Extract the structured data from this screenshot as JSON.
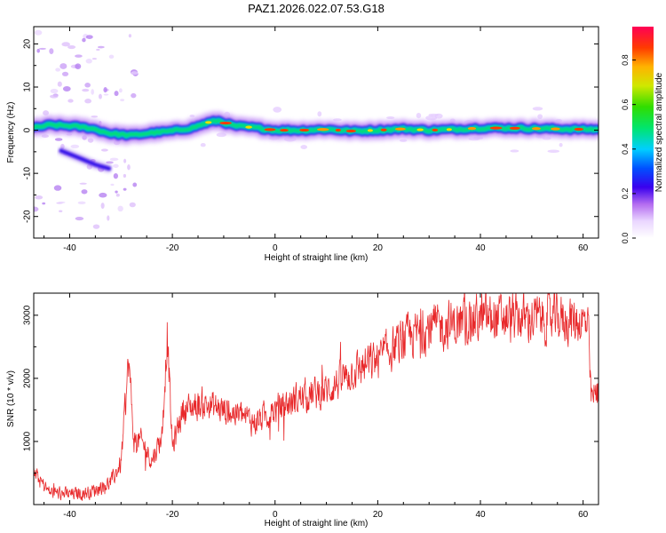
{
  "chart_data": {
    "title": "PAZ1.2026.022.07.53.G18",
    "spectrogram": {
      "type": "heatmap",
      "xlabel": "Height of straight line (km)",
      "ylabel": "Frequency (Hz)",
      "xlim": [
        -47,
        63
      ],
      "ylim": [
        -25,
        24
      ],
      "xticks": [
        -40,
        -20,
        0,
        20,
        40,
        60
      ],
      "yticks": [
        -20,
        -10,
        0,
        10,
        20
      ],
      "ridge": {
        "x": [
          -47,
          -44,
          -40,
          -36,
          -32,
          -28,
          -24,
          -20,
          -16,
          -13,
          -11,
          -8,
          -4,
          0,
          5,
          10,
          15,
          20,
          25,
          30,
          35,
          40,
          45,
          50,
          55,
          60,
          63
        ],
        "y": [
          0.5,
          1.2,
          1.0,
          0.5,
          -0.8,
          -1.2,
          -0.6,
          -0.2,
          0.6,
          1.8,
          2.2,
          1.0,
          0.6,
          0.0,
          0.0,
          0.2,
          -0.2,
          0.0,
          0.3,
          0.0,
          0.2,
          0.5,
          0.5,
          0.4,
          0.3,
          0.2,
          0.2
        ]
      },
      "side_branch": {
        "x": [
          -42,
          -38,
          -35,
          -32
        ],
        "y": [
          -4.6,
          -6.5,
          -8.0,
          -9.0
        ]
      }
    },
    "colorbar": {
      "label": "Normalized spectral amplitude",
      "range": [
        0.0,
        0.95
      ],
      "ticks": [
        "0.0",
        "0.2",
        "0.4",
        "0.6",
        "0.8"
      ]
    },
    "snr": {
      "type": "line",
      "xlabel": "Height of straight line (km)",
      "ylabel": "SNR (10 * v/v)",
      "xlim": [
        -47,
        63
      ],
      "ylim": [
        0,
        3350
      ],
      "xticks": [
        -40,
        -20,
        0,
        20,
        40,
        60
      ],
      "yticks": [
        1000,
        2000,
        3000
      ],
      "line_color": "#e8282a",
      "trend": {
        "x": [
          -47,
          -44,
          -40,
          -36,
          -32,
          -30,
          -28.5,
          -27.5,
          -26,
          -24,
          -22,
          -21,
          -20,
          -18,
          -14,
          -10,
          -6,
          -4,
          0,
          5,
          10,
          15,
          20,
          25,
          30,
          35,
          40,
          45,
          50,
          55,
          60,
          61,
          61.5,
          63
        ],
        "y": [
          500,
          200,
          160,
          200,
          350,
          650,
          2300,
          1000,
          1000,
          700,
          1100,
          2700,
          900,
          1500,
          1600,
          1500,
          1400,
          1300,
          1500,
          1700,
          1800,
          2100,
          2300,
          2600,
          2800,
          2850,
          2950,
          2950,
          2950,
          2950,
          2900,
          2800,
          1700,
          1750
        ]
      }
    }
  }
}
